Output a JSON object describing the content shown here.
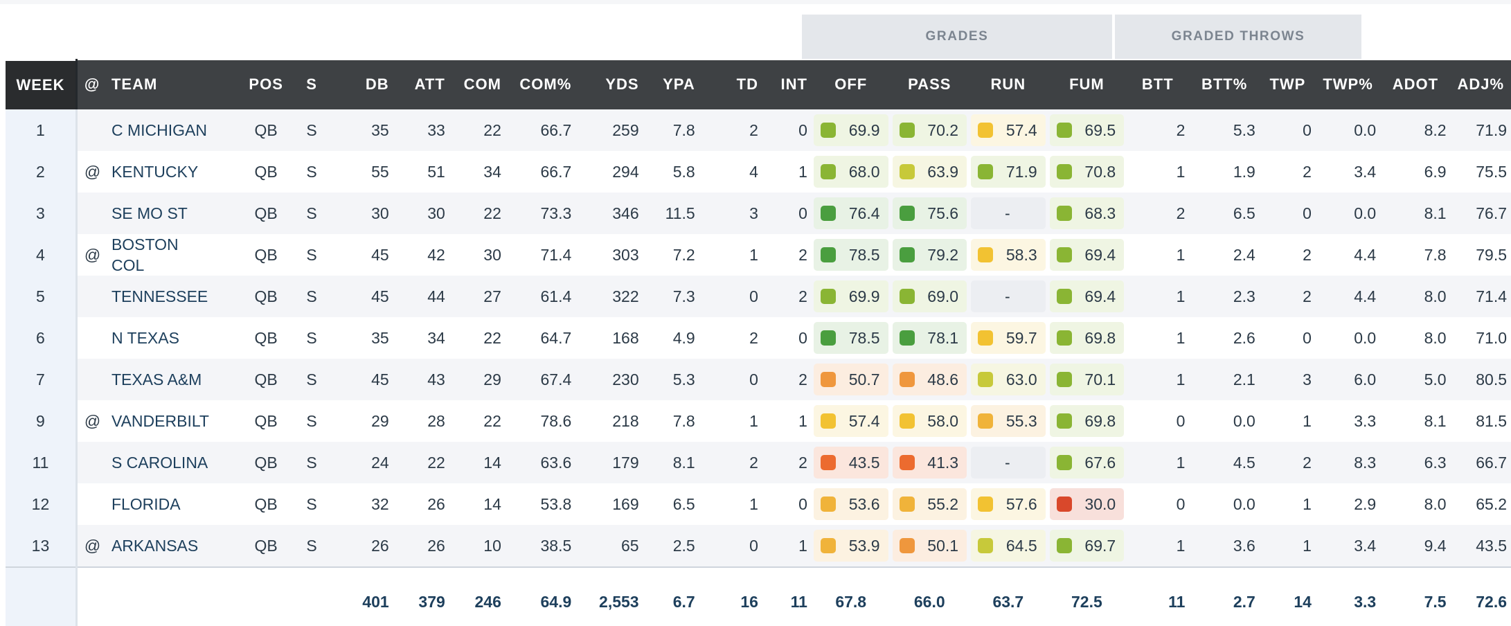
{
  "groups": {
    "grades": "GRADES",
    "graded_throws": "GRADED THROWS"
  },
  "headers": [
    "WEEK",
    "@",
    "TEAM",
    "POS",
    "S",
    "DB",
    "ATT",
    "COM",
    "COM%",
    "YDS",
    "YPA",
    "TD",
    "INT",
    "OFF",
    "PASS",
    "RUN",
    "FUM",
    "BTT",
    "BTT%",
    "TWP",
    "TWP%",
    "ADOT",
    "ADJ%"
  ],
  "colors": {
    "dark_green": "#4a9e3f",
    "green": "#8ab534",
    "yellow_green": "#c7c93a",
    "yellow": "#f2c232",
    "orange_yellow": "#f0b33a",
    "orange": "#ef973d",
    "dark_orange": "#ec6b2f",
    "red": "#d9482b"
  },
  "rows": [
    {
      "week": "1",
      "at": "",
      "team": "C MICHIGAN",
      "pos": "QB",
      "s": "S",
      "db": "35",
      "att": "33",
      "com": "22",
      "com_pct": "66.7",
      "yds": "259",
      "ypa": "7.8",
      "td": "2",
      "int": "0",
      "off": "69.9",
      "pass": "70.2",
      "run": "57.4",
      "fum": "69.5",
      "btt": "2",
      "btt_pct": "5.3",
      "twp": "0",
      "twp_pct": "0.0",
      "adot": "8.2",
      "adj_pct": "71.9"
    },
    {
      "week": "2",
      "at": "@",
      "team": "KENTUCKY",
      "pos": "QB",
      "s": "S",
      "db": "55",
      "att": "51",
      "com": "34",
      "com_pct": "66.7",
      "yds": "294",
      "ypa": "5.8",
      "td": "4",
      "int": "1",
      "off": "68.0",
      "pass": "63.9",
      "run": "71.9",
      "fum": "70.8",
      "btt": "1",
      "btt_pct": "1.9",
      "twp": "2",
      "twp_pct": "3.4",
      "adot": "6.9",
      "adj_pct": "75.5"
    },
    {
      "week": "3",
      "at": "",
      "team": "SE MO ST",
      "pos": "QB",
      "s": "S",
      "db": "30",
      "att": "30",
      "com": "22",
      "com_pct": "73.3",
      "yds": "346",
      "ypa": "11.5",
      "td": "3",
      "int": "0",
      "off": "76.4",
      "pass": "75.6",
      "run": "-",
      "fum": "68.3",
      "btt": "2",
      "btt_pct": "6.5",
      "twp": "0",
      "twp_pct": "0.0",
      "adot": "8.1",
      "adj_pct": "76.7"
    },
    {
      "week": "4",
      "at": "@",
      "team": "BOSTON COL",
      "pos": "QB",
      "s": "S",
      "db": "45",
      "att": "42",
      "com": "30",
      "com_pct": "71.4",
      "yds": "303",
      "ypa": "7.2",
      "td": "1",
      "int": "2",
      "off": "78.5",
      "pass": "79.2",
      "run": "58.3",
      "fum": "69.4",
      "btt": "1",
      "btt_pct": "2.4",
      "twp": "2",
      "twp_pct": "4.4",
      "adot": "7.8",
      "adj_pct": "79.5"
    },
    {
      "week": "5",
      "at": "",
      "team": "TENNESSEE",
      "pos": "QB",
      "s": "S",
      "db": "45",
      "att": "44",
      "com": "27",
      "com_pct": "61.4",
      "yds": "322",
      "ypa": "7.3",
      "td": "0",
      "int": "2",
      "off": "69.9",
      "pass": "69.0",
      "run": "-",
      "fum": "69.4",
      "btt": "1",
      "btt_pct": "2.3",
      "twp": "2",
      "twp_pct": "4.4",
      "adot": "8.0",
      "adj_pct": "71.4"
    },
    {
      "week": "6",
      "at": "",
      "team": "N TEXAS",
      "pos": "QB",
      "s": "S",
      "db": "35",
      "att": "34",
      "com": "22",
      "com_pct": "64.7",
      "yds": "168",
      "ypa": "4.9",
      "td": "2",
      "int": "0",
      "off": "78.5",
      "pass": "78.1",
      "run": "59.7",
      "fum": "69.8",
      "btt": "1",
      "btt_pct": "2.6",
      "twp": "0",
      "twp_pct": "0.0",
      "adot": "8.0",
      "adj_pct": "71.0"
    },
    {
      "week": "7",
      "at": "",
      "team": "TEXAS A&M",
      "pos": "QB",
      "s": "S",
      "db": "45",
      "att": "43",
      "com": "29",
      "com_pct": "67.4",
      "yds": "230",
      "ypa": "5.3",
      "td": "0",
      "int": "2",
      "off": "50.7",
      "pass": "48.6",
      "run": "63.0",
      "fum": "70.1",
      "btt": "1",
      "btt_pct": "2.1",
      "twp": "3",
      "twp_pct": "6.0",
      "adot": "5.0",
      "adj_pct": "80.5"
    },
    {
      "week": "9",
      "at": "@",
      "team": "VANDERBILT",
      "pos": "QB",
      "s": "S",
      "db": "29",
      "att": "28",
      "com": "22",
      "com_pct": "78.6",
      "yds": "218",
      "ypa": "7.8",
      "td": "1",
      "int": "1",
      "off": "57.4",
      "pass": "58.0",
      "run": "55.3",
      "fum": "69.8",
      "btt": "0",
      "btt_pct": "0.0",
      "twp": "1",
      "twp_pct": "3.3",
      "adot": "8.1",
      "adj_pct": "81.5"
    },
    {
      "week": "11",
      "at": "",
      "team": "S CAROLINA",
      "pos": "QB",
      "s": "S",
      "db": "24",
      "att": "22",
      "com": "14",
      "com_pct": "63.6",
      "yds": "179",
      "ypa": "8.1",
      "td": "2",
      "int": "2",
      "off": "43.5",
      "pass": "41.3",
      "run": "-",
      "fum": "67.6",
      "btt": "1",
      "btt_pct": "4.5",
      "twp": "2",
      "twp_pct": "8.3",
      "adot": "6.3",
      "adj_pct": "66.7"
    },
    {
      "week": "12",
      "at": "",
      "team": "FLORIDA",
      "pos": "QB",
      "s": "S",
      "db": "32",
      "att": "26",
      "com": "14",
      "com_pct": "53.8",
      "yds": "169",
      "ypa": "6.5",
      "td": "1",
      "int": "0",
      "off": "53.6",
      "pass": "55.2",
      "run": "57.6",
      "fum": "30.0",
      "btt": "0",
      "btt_pct": "0.0",
      "twp": "1",
      "twp_pct": "2.9",
      "adot": "8.0",
      "adj_pct": "65.2"
    },
    {
      "week": "13",
      "at": "@",
      "team": "ARKANSAS",
      "pos": "QB",
      "s": "S",
      "db": "26",
      "att": "26",
      "com": "10",
      "com_pct": "38.5",
      "yds": "65",
      "ypa": "2.5",
      "td": "0",
      "int": "1",
      "off": "53.9",
      "pass": "50.1",
      "run": "64.5",
      "fum": "69.7",
      "btt": "1",
      "btt_pct": "3.6",
      "twp": "1",
      "twp_pct": "3.4",
      "adot": "9.4",
      "adj_pct": "43.5"
    }
  ],
  "totals": {
    "db": "401",
    "att": "379",
    "com": "246",
    "com_pct": "64.9",
    "yds": "2,553",
    "ypa": "6.7",
    "td": "16",
    "int": "11",
    "off": "67.8",
    "pass": "66.0",
    "run": "63.7",
    "fum": "72.5",
    "btt": "11",
    "btt_pct": "2.7",
    "twp": "14",
    "twp_pct": "3.3",
    "adot": "7.5",
    "adj_pct": "72.6"
  }
}
